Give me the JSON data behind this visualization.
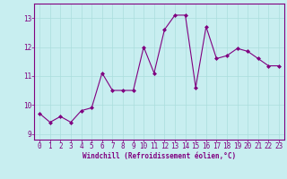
{
  "x": [
    0,
    1,
    2,
    3,
    4,
    5,
    6,
    7,
    8,
    9,
    10,
    11,
    12,
    13,
    14,
    15,
    16,
    17,
    18,
    19,
    20,
    21,
    22,
    23
  ],
  "y": [
    9.7,
    9.4,
    9.6,
    9.4,
    9.8,
    9.9,
    11.1,
    10.5,
    10.5,
    10.5,
    12.0,
    11.1,
    12.6,
    13.1,
    13.1,
    10.6,
    12.7,
    11.6,
    11.7,
    11.95,
    11.85,
    11.6,
    11.35,
    11.35
  ],
  "line_color": "#800080",
  "marker": "D",
  "marker_size": 2,
  "bg_color": "#c8eef0",
  "grid_color": "#aadddd",
  "xlabel": "Windchill (Refroidissement éolien,°C)",
  "xlabel_color": "#800080",
  "tick_color": "#800080",
  "spine_color": "#800080",
  "ylim": [
    8.8,
    13.5
  ],
  "xlim": [
    -0.5,
    23.5
  ],
  "yticks": [
    9,
    10,
    11,
    12,
    13
  ],
  "xticks": [
    0,
    1,
    2,
    3,
    4,
    5,
    6,
    7,
    8,
    9,
    10,
    11,
    12,
    13,
    14,
    15,
    16,
    17,
    18,
    19,
    20,
    21,
    22,
    23
  ],
  "tick_fontsize": 5.5,
  "xlabel_fontsize": 5.5
}
